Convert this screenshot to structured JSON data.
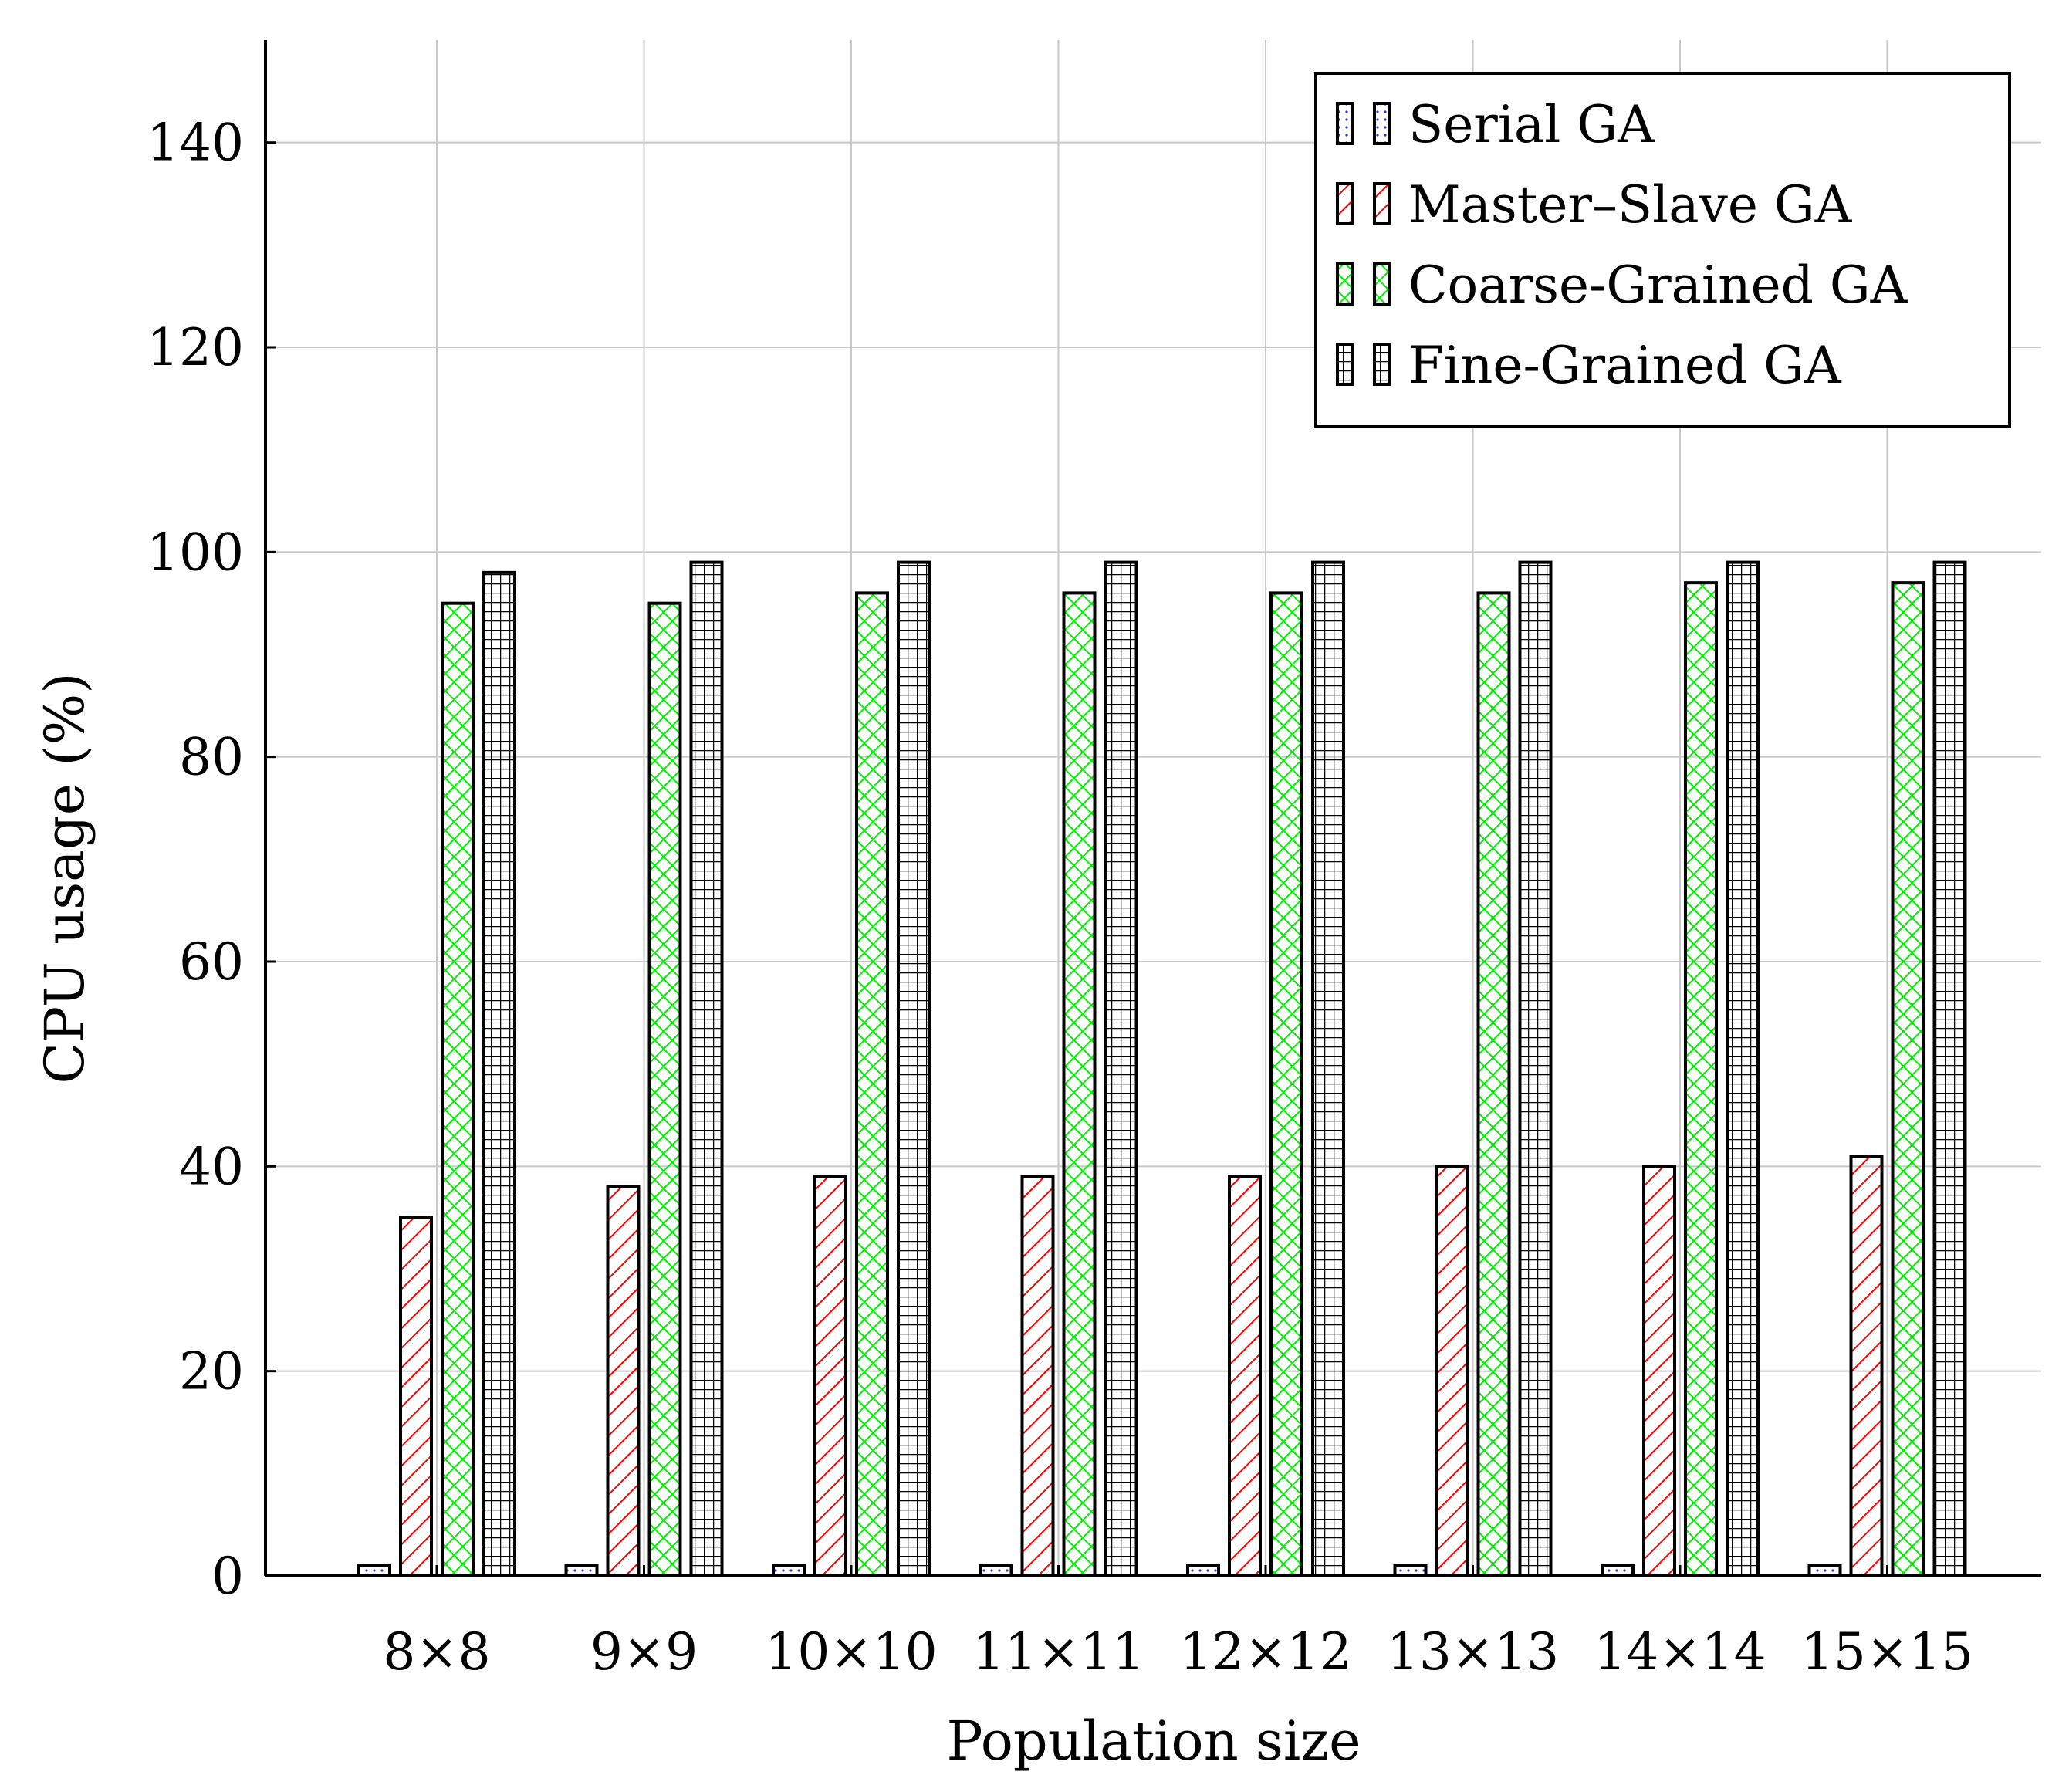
{
  "chart_data": {
    "type": "bar",
    "title": "",
    "xlabel": "Population size",
    "ylabel": "CPU usage (%)",
    "ylim": [
      0,
      150
    ],
    "yticks": [
      0,
      20,
      40,
      60,
      80,
      100,
      120,
      140
    ],
    "grid": true,
    "legend_position": "top-right",
    "categories": [
      "8×8",
      "9×9",
      "10×10",
      "11×11",
      "12×12",
      "13×13",
      "14×14",
      "15×15"
    ],
    "series": [
      {
        "name": "Serial GA",
        "values": [
          1,
          1,
          1,
          1,
          1,
          1,
          1,
          1
        ],
        "color": "#3333cc",
        "pattern": "dots"
      },
      {
        "name": "Master–Slave GA",
        "values": [
          35,
          38,
          39,
          39,
          39,
          40,
          40,
          41
        ],
        "color": "#ff0000",
        "pattern": "diagonal-lines"
      },
      {
        "name": "Coarse-Grained GA",
        "values": [
          95,
          95,
          96,
          96,
          96,
          96,
          97,
          97
        ],
        "color": "#00ee00",
        "pattern": "crosshatch"
      },
      {
        "name": "Fine-Grained GA",
        "values": [
          98,
          99,
          99,
          99,
          99,
          99,
          99,
          99
        ],
        "color": "#000000",
        "pattern": "grid"
      }
    ]
  }
}
